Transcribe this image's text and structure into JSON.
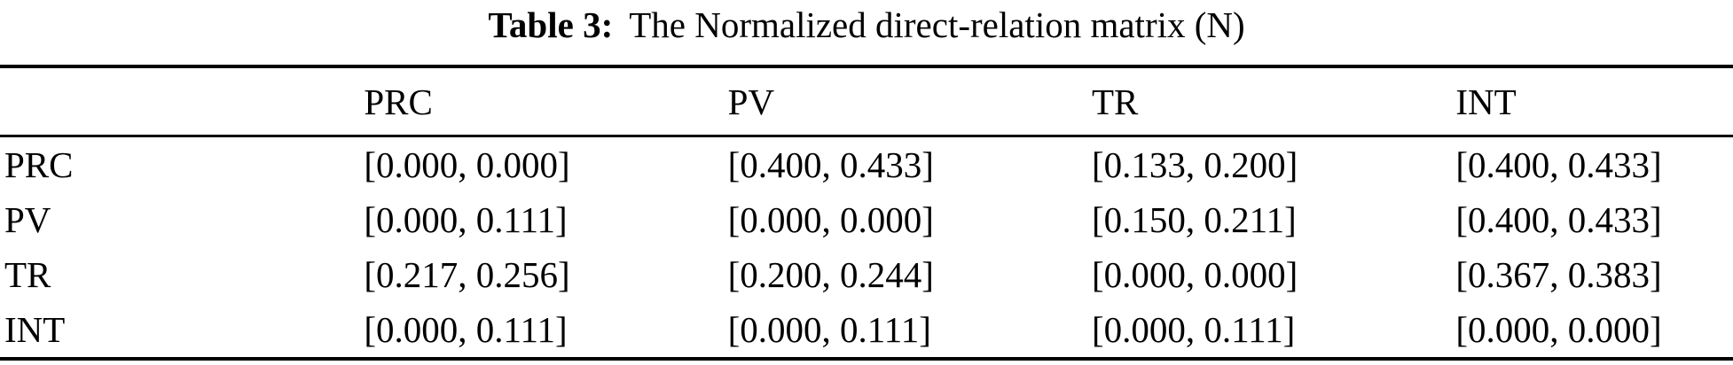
{
  "caption": {
    "label": "Table 3:",
    "text": "The Normalized direct-relation matrix (N)"
  },
  "table": {
    "corner": "",
    "col_headers": [
      "PRC",
      "PV",
      "TR",
      "INT"
    ],
    "rows": [
      {
        "header": "PRC",
        "cells": [
          "[0.000, 0.000]",
          "[0.400, 0.433]",
          "[0.133, 0.200]",
          "[0.400, 0.433]"
        ]
      },
      {
        "header": "PV",
        "cells": [
          "[0.000, 0.111]",
          "[0.000, 0.000]",
          "[0.150, 0.211]",
          "[0.400, 0.433]"
        ]
      },
      {
        "header": "TR",
        "cells": [
          "[0.217, 0.256]",
          "[0.200, 0.244]",
          "[0.000, 0.000]",
          "[0.367, 0.383]"
        ]
      },
      {
        "header": "INT",
        "cells": [
          "[0.000, 0.111]",
          "[0.000, 0.111]",
          "[0.000, 0.111]",
          "[0.000, 0.000]"
        ]
      }
    ]
  },
  "colors": {
    "text": "#000000",
    "background": "#ffffff",
    "rule": "#000000"
  }
}
